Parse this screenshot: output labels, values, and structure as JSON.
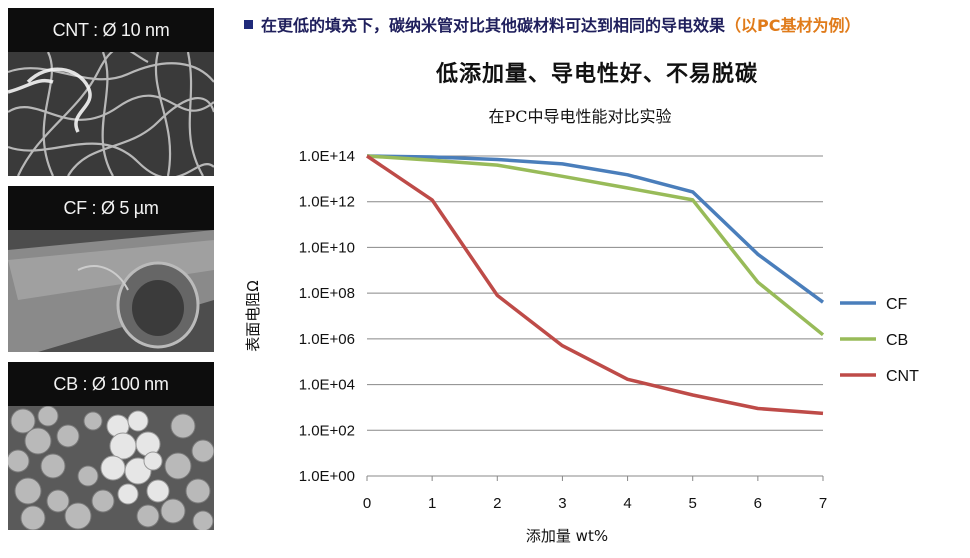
{
  "header": {
    "headline_main": "在更低的填充下，碳纳米管对比其他碳材料可达到相同的导电效果",
    "headline_highlight": "（以PC基材为例）",
    "subheadline": "低添加量、导电性好、不易脱碳"
  },
  "micrographs": [
    {
      "label": "CNT : Ø 10 nm"
    },
    {
      "label": "CF : Ø 5 µm"
    },
    {
      "label": "CB : Ø 100 nm"
    }
  ],
  "colors": {
    "CF": "#4a7ebb",
    "CB": "#98bb59",
    "CNT": "#be4b48",
    "grid": "#888888"
  },
  "chart_data": {
    "type": "line",
    "title": "在PC中导电性能对比实验",
    "xlabel": "添加量 wt%",
    "ylabel": "表面电阻Ω",
    "y_scale": "log",
    "x_ticks": [
      0,
      1,
      2,
      3,
      4,
      5,
      6,
      7
    ],
    "y_tick_labels": [
      "1.0E+00",
      "1.0E+02",
      "1.0E+04",
      "1.0E+06",
      "1.0E+08",
      "1.0E+10",
      "1.0E+12",
      "1.0E+14"
    ],
    "y_tick_exponents": [
      0,
      2,
      4,
      6,
      8,
      10,
      12,
      14
    ],
    "xlim": [
      0,
      7
    ],
    "ylim_exponent": [
      0,
      14
    ],
    "grid": "horizontal",
    "legend_position": "right",
    "x": [
      0,
      1,
      2,
      3,
      4,
      5,
      6,
      7
    ],
    "series": [
      {
        "name": "CF",
        "color": "#4a7ebb",
        "values": [
          100000000000000.0,
          90000000000000.0,
          70000000000000.0,
          45000000000000.0,
          15000000000000.0,
          2700000000000.0,
          5000000000.0,
          40000000.0
        ]
      },
      {
        "name": "CB",
        "color": "#98bb59",
        "values": [
          100000000000000.0,
          65000000000000.0,
          40000000000000.0,
          13000000000000.0,
          4000000000000.0,
          1200000000000.0,
          300000000.0,
          1500000.0
        ]
      },
      {
        "name": "CNT",
        "color": "#be4b48",
        "values": [
          100000000000000.0,
          1200000000000.0,
          80000000.0,
          500000.0,
          17000.0,
          3500.0,
          900.0,
          550.0
        ]
      }
    ]
  }
}
